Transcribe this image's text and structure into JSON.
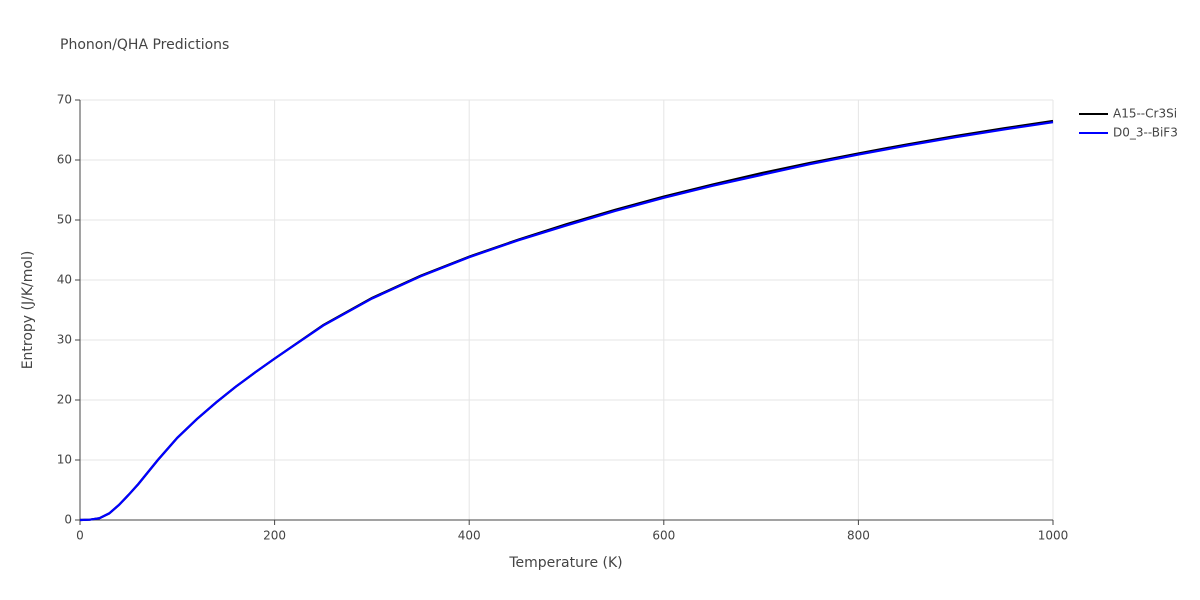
{
  "chart_data": {
    "type": "line",
    "title": "Phonon/QHA Predictions",
    "x_label": "Temperature (K)",
    "y_label": "Entropy (J/K/mol)",
    "x": [
      0,
      10,
      20,
      30,
      40,
      50,
      60,
      80,
      100,
      120,
      140,
      160,
      180,
      200,
      250,
      300,
      350,
      400,
      450,
      500,
      550,
      600,
      650,
      700,
      750,
      800,
      850,
      900,
      950,
      1000
    ],
    "series": [
      {
        "name": "A15--Cr3Si",
        "color": "#000000",
        "values": [
          0,
          0.05,
          0.3,
          1.1,
          2.5,
          4.2,
          6.0,
          10.0,
          13.7,
          16.8,
          19.6,
          22.2,
          24.6,
          26.9,
          32.5,
          37.0,
          40.7,
          43.9,
          46.7,
          49.3,
          51.7,
          53.9,
          55.9,
          57.8,
          59.5,
          61.1,
          62.6,
          64.0,
          65.3,
          66.5
        ]
      },
      {
        "name": "D0_3--BiF3",
        "color": "#0000ff",
        "values": [
          0,
          0.05,
          0.3,
          1.1,
          2.5,
          4.2,
          6.0,
          10.0,
          13.7,
          16.8,
          19.6,
          22.2,
          24.6,
          26.9,
          32.4,
          36.9,
          40.6,
          43.8,
          46.6,
          49.1,
          51.5,
          53.7,
          55.7,
          57.5,
          59.3,
          60.9,
          62.4,
          63.8,
          65.1,
          66.3
        ]
      }
    ],
    "xlim": [
      0,
      1000
    ],
    "xticks": [
      0,
      200,
      400,
      600,
      800,
      1000
    ],
    "ylim": [
      0,
      70
    ],
    "yticks": [
      0,
      10,
      20,
      30,
      40,
      50,
      60,
      70
    ],
    "grid": true,
    "legend": "right"
  }
}
